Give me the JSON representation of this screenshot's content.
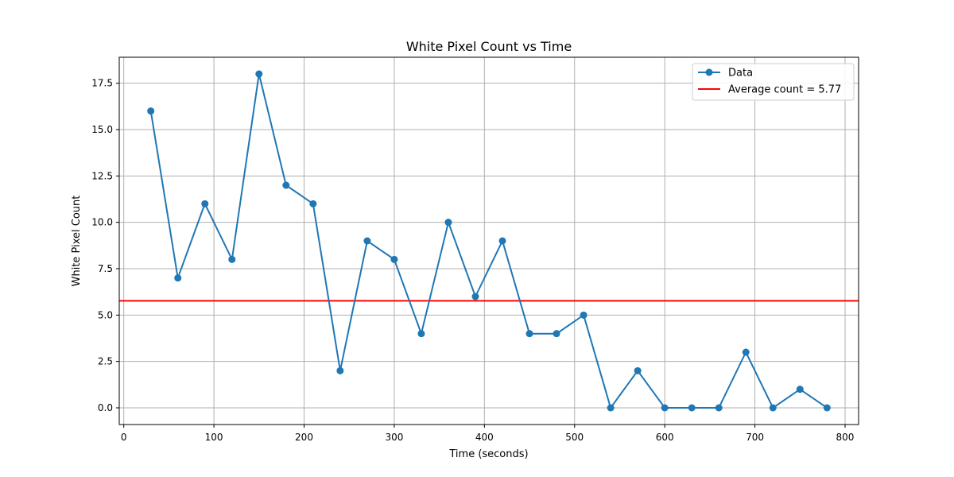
{
  "chart_data": {
    "type": "line",
    "title": "White Pixel Count vs Time",
    "xlabel": "Time (seconds)",
    "ylabel": "White Pixel Count",
    "xlim": [
      -5,
      815
    ],
    "ylim": [
      -0.9,
      18.9
    ],
    "xticks": [
      0,
      100,
      200,
      300,
      400,
      500,
      600,
      700,
      800
    ],
    "xtick_labels": [
      "0",
      "100",
      "200",
      "300",
      "400",
      "500",
      "600",
      "700",
      "800"
    ],
    "yticks": [
      0,
      2.5,
      5,
      7.5,
      10,
      12.5,
      15,
      17.5
    ],
    "ytick_labels": [
      "0.0",
      "2.5",
      "5.0",
      "7.5",
      "10.0",
      "12.5",
      "15.0",
      "17.5"
    ],
    "grid": true,
    "legend_position": "top-right",
    "series": [
      {
        "name": "Data",
        "color": "#1f77b4",
        "marker": "circle",
        "x": [
          30,
          60,
          90,
          120,
          150,
          180,
          210,
          240,
          270,
          300,
          330,
          360,
          390,
          420,
          450,
          480,
          510,
          540,
          570,
          600,
          630,
          660,
          690,
          720,
          750,
          780
        ],
        "y": [
          16,
          7,
          11,
          8,
          18,
          12,
          11,
          2,
          9,
          8,
          4,
          10,
          6,
          9,
          4,
          4,
          5,
          0,
          2,
          0,
          0,
          0,
          3,
          0,
          1,
          0
        ]
      }
    ],
    "hlines": [
      {
        "name": "Average count = 5.77",
        "y": 5.77,
        "color": "#ff0000"
      }
    ]
  }
}
